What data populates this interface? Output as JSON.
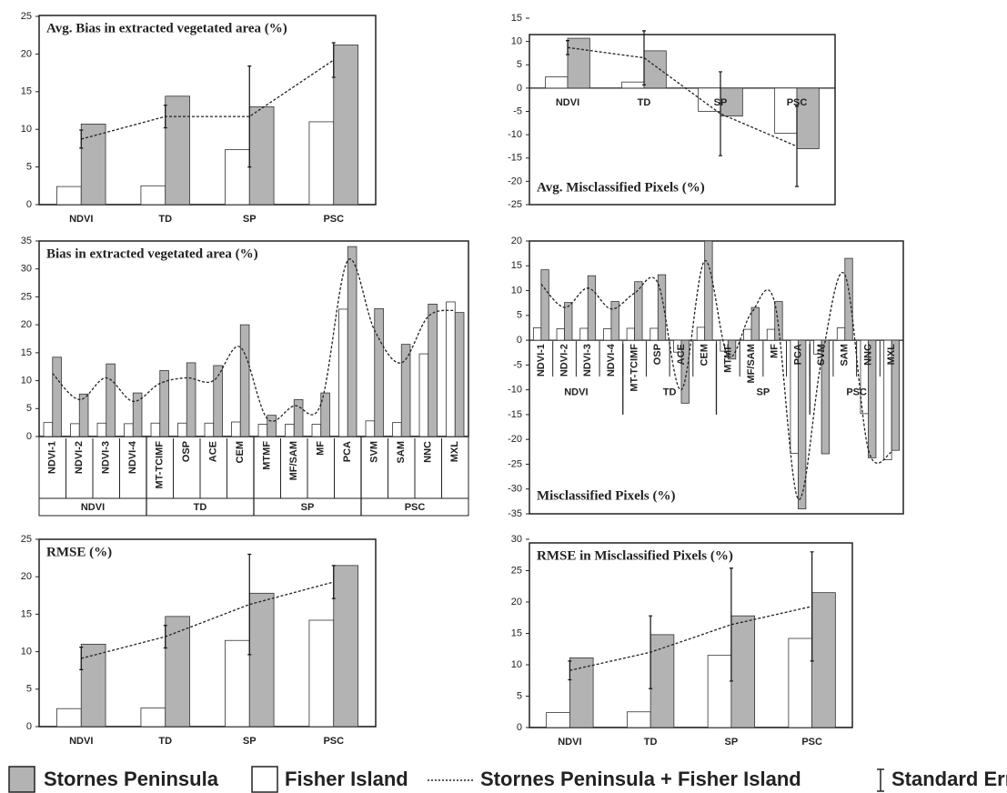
{
  "chart_data": [
    {
      "type": "bar",
      "title": "Avg. Bias in extracted vegetated area (%)",
      "categories": [
        "NDVI",
        "TD",
        "SP",
        "PSC"
      ],
      "series": [
        {
          "name": "Stornes Peninsula",
          "color": "#b3b3b3",
          "values": [
            10.7,
            14.4,
            13,
            21.2
          ]
        },
        {
          "name": "Fisher Island",
          "color": "#ffffff",
          "values": [
            2.4,
            2.5,
            7.3,
            11
          ]
        },
        {
          "name": "Stornes Peninsula + Fisher Island",
          "color": "#222222",
          "type": "line",
          "values": [
            8.7,
            11.7,
            11.7,
            19.2
          ],
          "errors": [
            1.2,
            1.5,
            6.7,
            2.3
          ],
          "error_name": "Standard Error"
        }
      ],
      "ylim": [
        0,
        25
      ],
      "yticks": [
        0,
        5,
        10,
        15,
        20,
        25
      ]
    },
    {
      "type": "bar",
      "title": "Avg. Misclassified Pixels (%)",
      "categories": [
        "NDVI",
        "TD",
        "SP",
        "PSC"
      ],
      "series": [
        {
          "name": "Stornes Peninsula",
          "color": "#b3b3b3",
          "values": [
            10.7,
            8,
            -6,
            -13
          ]
        },
        {
          "name": "Fisher Island",
          "color": "#ffffff",
          "values": [
            2.4,
            1.3,
            -5,
            -9.7
          ]
        },
        {
          "name": "Stornes Peninsula + Fisher Island",
          "color": "#222222",
          "type": "line",
          "values": [
            8.7,
            6.5,
            -5.5,
            -12.5
          ],
          "errors": [
            1.5,
            5.8,
            9,
            8.6
          ]
        }
      ],
      "ylim": [
        -25,
        15
      ],
      "yticks": [
        -25,
        -20,
        -15,
        -10,
        -5,
        0,
        5,
        10,
        15
      ]
    },
    {
      "type": "bar",
      "title": "Bias in extracted vegetated area (%)",
      "categories": [
        "NDVI-1",
        "NDVI-2",
        "NDVI-3",
        "NDVI-4",
        "MT-TCIMF",
        "OSP",
        "ACE",
        "CEM",
        "MTMF",
        "MF/SAM",
        "MF",
        "PCA",
        "SVM",
        "SAM",
        "NNC",
        "MXL"
      ],
      "groups": [
        {
          "name": "NDVI",
          "size": 4
        },
        {
          "name": "TD",
          "size": 4
        },
        {
          "name": "SP",
          "size": 4
        },
        {
          "name": "PSC",
          "size": 4
        }
      ],
      "series": [
        {
          "name": "Stornes Peninsula",
          "color": "#b3b3b3",
          "values": [
            14.2,
            7.6,
            13,
            7.8,
            11.8,
            13.2,
            12.7,
            20,
            3.8,
            6.6,
            7.8,
            34,
            22.9,
            16.5,
            23.7,
            22.2
          ]
        },
        {
          "name": "Fisher Island",
          "color": "#ffffff",
          "values": [
            2.5,
            2.3,
            2.4,
            2.3,
            2.4,
            2.4,
            2.4,
            2.6,
            2.2,
            2.2,
            2.2,
            22.8,
            2.8,
            2.5,
            14.8,
            24.1
          ]
        },
        {
          "name": "Stornes Peninsula + Fisher Island",
          "color": "#222222",
          "type": "line",
          "smooth": true,
          "values": [
            11.3,
            6.6,
            10.5,
            6.3,
            9.5,
            10.5,
            10,
            16,
            3.2,
            5.5,
            5.8,
            31.5,
            19,
            13.2,
            21.5,
            22.6
          ]
        }
      ],
      "ylim": [
        0,
        35
      ],
      "yticks": [
        0,
        5,
        10,
        15,
        20,
        25,
        30,
        35
      ]
    },
    {
      "type": "bar",
      "title": "Misclassified Pixels (%)",
      "categories": [
        "NDVI-1",
        "NDVI-2",
        "NDVI-3",
        "NDVI-4",
        "MT-TCIMF",
        "OSP",
        "ACE",
        "CEM",
        "MTMF",
        "MF/SAM",
        "MF",
        "PCA",
        "SVM",
        "SAM",
        "NNC",
        "MXL"
      ],
      "groups": [
        {
          "name": "NDVI",
          "size": 4
        },
        {
          "name": "TD",
          "size": 4
        },
        {
          "name": "SP",
          "size": 4
        },
        {
          "name": "PSC",
          "size": 4
        }
      ],
      "series": [
        {
          "name": "Stornes Peninsula",
          "color": "#b3b3b3",
          "values": [
            14.2,
            7.6,
            13,
            7.8,
            11.8,
            13.2,
            -12.7,
            20,
            -3.8,
            6.6,
            7.8,
            -34,
            -22.9,
            16.5,
            -23.7,
            -22.2
          ]
        },
        {
          "name": "Fisher Island",
          "color": "#ffffff",
          "values": [
            2.5,
            2.3,
            2.4,
            2.3,
            2.4,
            2.4,
            -2.4,
            2.6,
            -2.2,
            2.2,
            2.2,
            -22.8,
            -2.8,
            2.5,
            -14.8,
            -24.1
          ]
        },
        {
          "name": "Stornes Peninsula + Fisher Island",
          "color": "#222222",
          "type": "line",
          "smooth": true,
          "values": [
            11.3,
            6.6,
            10.5,
            6.3,
            9.5,
            11.5,
            -10,
            16,
            -3.2,
            5.5,
            7.5,
            -32,
            -4,
            13.2,
            -22,
            -22.6
          ]
        }
      ],
      "ylim": [
        -35,
        20
      ],
      "yticks": [
        -35,
        -30,
        -25,
        -20,
        -15,
        -10,
        -5,
        0,
        5,
        10,
        15,
        20
      ]
    },
    {
      "type": "bar",
      "title": "RMSE (%)",
      "categories": [
        "NDVI",
        "TD",
        "SP",
        "PSC"
      ],
      "series": [
        {
          "name": "Stornes Peninsula",
          "color": "#b3b3b3",
          "values": [
            11,
            14.7,
            17.8,
            21.5
          ]
        },
        {
          "name": "Fisher Island",
          "color": "#ffffff",
          "values": [
            2.4,
            2.5,
            11.5,
            14.2
          ]
        },
        {
          "name": "Stornes Peninsula + Fisher Island",
          "color": "#222222",
          "type": "line",
          "values": [
            9.1,
            12,
            16.3,
            19.3
          ],
          "errors": [
            1.5,
            1.5,
            6.7,
            2.2
          ]
        }
      ],
      "ylim": [
        0,
        25
      ],
      "yticks": [
        0,
        5,
        10,
        15,
        20,
        25
      ]
    },
    {
      "type": "bar",
      "title": "RMSE in Misclassified Pixels (%)",
      "categories": [
        "NDVI",
        "TD",
        "SP",
        "PSC"
      ],
      "series": [
        {
          "name": "Stornes Peninsula",
          "color": "#b3b3b3",
          "values": [
            11.1,
            14.8,
            17.8,
            21.5
          ]
        },
        {
          "name": "Fisher Island",
          "color": "#ffffff",
          "values": [
            2.4,
            2.5,
            11.5,
            14.2
          ]
        },
        {
          "name": "Stornes Peninsula + Fisher Island",
          "color": "#222222",
          "type": "line",
          "values": [
            9.1,
            12,
            16.4,
            19.3
          ],
          "errors": [
            1.5,
            5.8,
            9,
            8.7
          ]
        }
      ],
      "ylim": [
        0,
        30
      ],
      "yticks": [
        0,
        5,
        10,
        15,
        20,
        25,
        30
      ]
    }
  ]
}
